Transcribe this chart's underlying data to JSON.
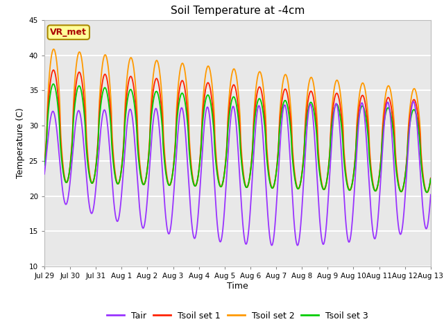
{
  "title": "Soil Temperature at -4cm",
  "xlabel": "Time",
  "ylabel": "Temperature (C)",
  "ylim": [
    10,
    45
  ],
  "yticks": [
    10,
    15,
    20,
    25,
    30,
    35,
    40,
    45
  ],
  "colors": {
    "Tair": "#9933FF",
    "Tsoil set 1": "#FF2200",
    "Tsoil set 2": "#FF9900",
    "Tsoil set 3": "#00CC00"
  },
  "annotation_text": "VR_met",
  "annotation_bg": "#FFFF99",
  "annotation_border": "#AA8800",
  "annotation_text_color": "#AA0000",
  "bg_color": "#E8E8E8",
  "grid_color": "#FFFFFF",
  "n_days": 15,
  "x_tick_labels": [
    "Jul 29",
    "Jul 30",
    "Jul 31",
    "Aug 1",
    "Aug 2",
    "Aug 3",
    "Aug 4",
    "Aug 5",
    "Aug 6",
    "Aug 7",
    "Aug 8",
    "Aug 9",
    "Aug 10",
    "Aug 11",
    "Aug 12",
    "Aug 13"
  ],
  "x_tick_positions": [
    0,
    1,
    2,
    3,
    4,
    5,
    6,
    7,
    8,
    9,
    10,
    11,
    12,
    13,
    14,
    15
  ]
}
